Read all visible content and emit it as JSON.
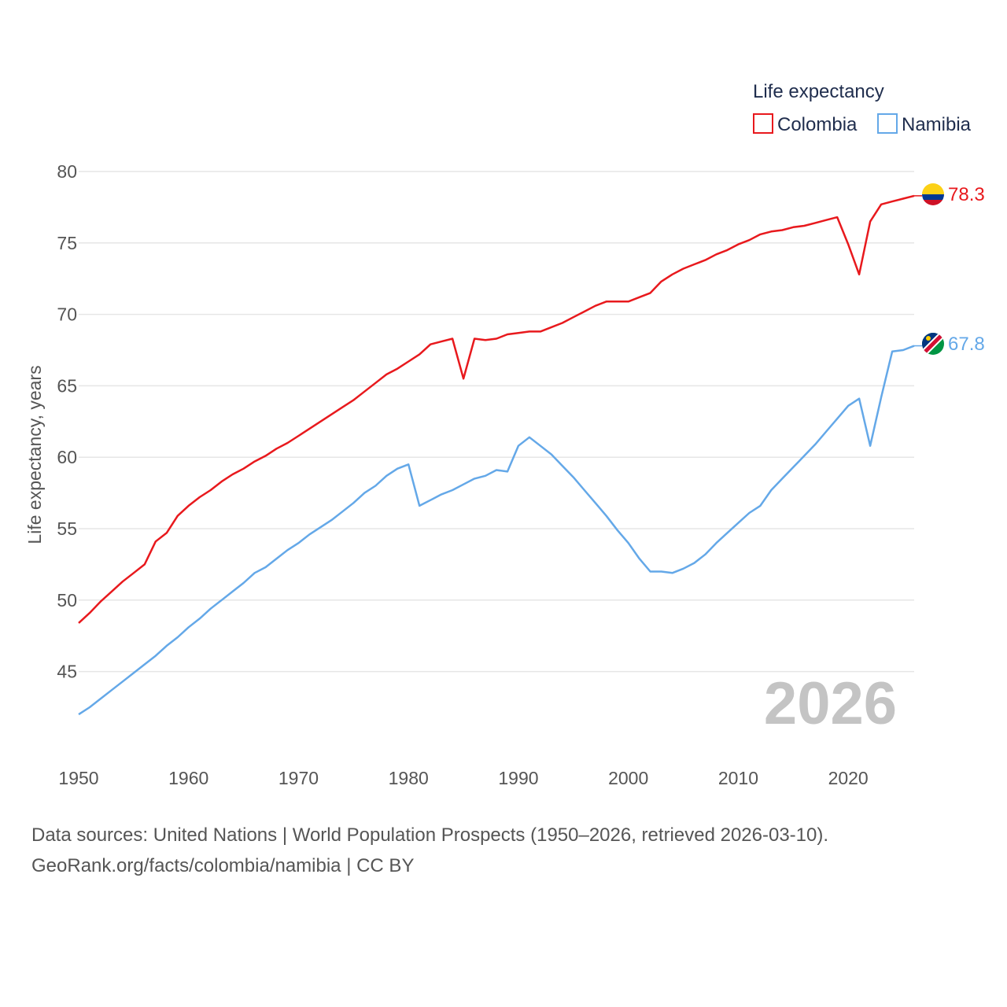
{
  "legend": {
    "title": "Life expectancy",
    "items": [
      {
        "name": "Colombia",
        "color": "#e8191d"
      },
      {
        "name": "Namibia",
        "color": "#64a8e8"
      }
    ]
  },
  "year_label": "2026",
  "source": {
    "line1": "Data sources: United Nations | World Population Prospects (1950–2026, retrieved 2026-03-10).",
    "line2": "GeoRank.org/facts/colombia/namibia | CC BY"
  },
  "chart_data": {
    "type": "line",
    "title": "Life expectancy",
    "xlabel": "",
    "ylabel": "Life expectancy, years",
    "xlim": [
      1950,
      2026
    ],
    "ylim": [
      40,
      80
    ],
    "xticks": [
      1950,
      1960,
      1970,
      1980,
      1990,
      2000,
      2010,
      2020
    ],
    "yticks": [
      45,
      50,
      55,
      60,
      65,
      70,
      75,
      80
    ],
    "grid": true,
    "legend_position": "top-right",
    "x_start": 1950,
    "series": [
      {
        "name": "Colombia",
        "color": "#e8191d",
        "end_label": "78.3",
        "flag": "colombia",
        "values": [
          48.4,
          49.1,
          49.9,
          50.6,
          51.3,
          51.9,
          52.5,
          54.1,
          54.7,
          55.9,
          56.6,
          57.2,
          57.7,
          58.3,
          58.8,
          59.2,
          59.7,
          60.1,
          60.6,
          61.0,
          61.5,
          62.0,
          62.5,
          63.0,
          63.5,
          64.0,
          64.6,
          65.2,
          65.8,
          66.2,
          66.7,
          67.2,
          67.9,
          68.1,
          68.3,
          65.5,
          68.3,
          68.2,
          68.3,
          68.6,
          68.7,
          68.8,
          68.8,
          69.1,
          69.4,
          69.8,
          70.2,
          70.6,
          70.9,
          70.9,
          70.9,
          71.2,
          71.5,
          72.3,
          72.8,
          73.2,
          73.5,
          73.8,
          74.2,
          74.5,
          74.9,
          75.2,
          75.6,
          75.8,
          75.9,
          76.1,
          76.2,
          76.4,
          76.6,
          76.8,
          74.9,
          72.8,
          76.5,
          77.7,
          77.9,
          78.1,
          78.3
        ]
      },
      {
        "name": "Namibia",
        "color": "#64a8e8",
        "end_label": "67.8",
        "flag": "namibia",
        "values": [
          42.0,
          42.5,
          43.1,
          43.7,
          44.3,
          44.9,
          45.5,
          46.1,
          46.8,
          47.4,
          48.1,
          48.7,
          49.4,
          50.0,
          50.6,
          51.2,
          51.9,
          52.3,
          52.9,
          53.5,
          54.0,
          54.6,
          55.1,
          55.6,
          56.2,
          56.8,
          57.5,
          58.0,
          58.7,
          59.2,
          59.5,
          56.6,
          57.0,
          57.4,
          57.7,
          58.1,
          58.5,
          58.7,
          59.1,
          59.0,
          60.8,
          61.4,
          60.8,
          60.2,
          59.4,
          58.6,
          57.7,
          56.8,
          55.9,
          54.9,
          54.0,
          52.9,
          52.0,
          52.0,
          51.9,
          52.2,
          52.6,
          53.2,
          54.0,
          54.7,
          55.4,
          56.1,
          56.6,
          57.7,
          58.5,
          59.3,
          60.1,
          60.9,
          61.8,
          62.7,
          63.6,
          64.1,
          60.8,
          64.2,
          67.4,
          67.5,
          67.8
        ]
      }
    ]
  }
}
